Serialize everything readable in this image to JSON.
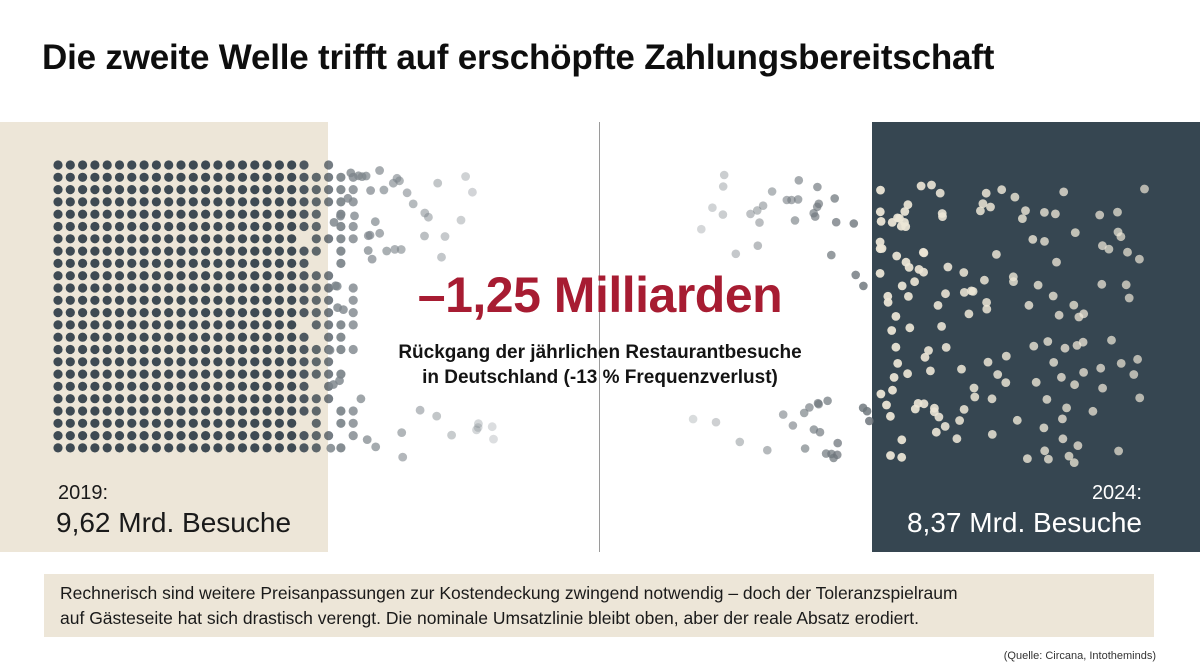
{
  "title": "Die zweite Welle trifft auf erschöpfte Zahlungsbereitschaft",
  "left": {
    "year": "2019:",
    "visits": "9,62 Mrd. Besuche",
    "value": 9.62
  },
  "right": {
    "year": "2024:",
    "visits": "8,37 Mrd. Besuche",
    "value": 8.37
  },
  "headline": "–1,25 Milliarden",
  "subline": {
    "line1": "Rückgang der jährlichen Restaurantbesuche",
    "line2": "in Deutschland (-13 % Frequenzverlust)"
  },
  "note": {
    "line1": "Rechnerisch sind weitere Preisanpassungen zur Kostendeckung zwingend notwendig – doch der Toleranzspielraum",
    "line2": "auf Gästeseite hat sich drastisch verengt. Die nominale Umsatzlinie bleibt oben, aber der reale Absatz erodiert."
  },
  "source": "(Quelle: Circana, Intotheminds)",
  "colors": {
    "accent": "#a71c32",
    "panel_light": "#ede6d8",
    "panel_dark": "#364651",
    "dot_dark": "#3e4a53",
    "dot_light": "#ece6d6"
  }
}
